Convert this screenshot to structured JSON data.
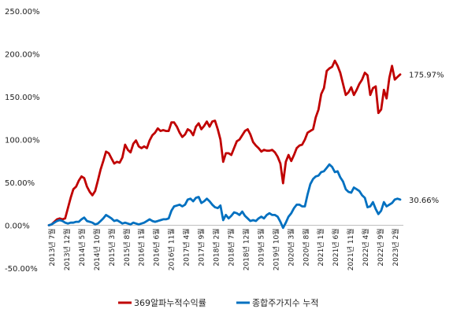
{
  "chart_data": {
    "type": "line",
    "title": "",
    "xlabel": "",
    "ylabel": "",
    "ylim": [
      -50,
      250
    ],
    "yticks": [
      -50,
      0,
      50,
      100,
      150,
      200,
      250
    ],
    "ytick_labels": [
      "-50.00%",
      "0.00%",
      "50.00%",
      "100.00%",
      "150.00%",
      "200.00%",
      "250.00%"
    ],
    "grid": false,
    "legend_position": "bottom",
    "x_tick_labels": [
      "2013년 7월",
      "2013년 12월",
      "2014년 5월",
      "2014년 10월",
      "2015년 3월",
      "2015년 8월",
      "2016년 1월",
      "2016년 6월",
      "2016년 11월",
      "2017년 4월",
      "2017년 9월",
      "2018년 2월",
      "2018년 7월",
      "2018년 12월",
      "2019년 5월",
      "2019년 10월",
      "2020년 3월",
      "2020년 8월",
      "2021년 1월",
      "2021년 6월",
      "2021년 11월",
      "2022년 4월",
      "2022년 9월",
      "2023년 2월"
    ],
    "series": [
      {
        "name": "369알파누적수익률",
        "color": "#c00000",
        "end_label": "175.97%",
        "values": [
          0,
          1,
          4,
          7,
          8,
          7,
          8,
          20,
          32,
          42,
          45,
          52,
          57,
          55,
          45,
          39,
          35,
          40,
          52,
          65,
          75,
          86,
          84,
          78,
          72,
          74,
          73,
          79,
          94,
          88,
          85,
          95,
          99,
          92,
          90,
          92,
          90,
          99,
          105,
          108,
          113,
          110,
          111,
          110,
          110,
          120,
          120,
          115,
          108,
          103,
          106,
          112,
          110,
          105,
          115,
          119,
          112,
          116,
          121,
          115,
          121,
          122,
          112,
          100,
          74,
          84,
          84,
          82,
          90,
          98,
          100,
          105,
          110,
          112,
          106,
          97,
          93,
          90,
          86,
          88,
          87,
          87,
          88,
          85,
          80,
          72,
          49,
          74,
          82,
          75,
          82,
          90,
          93,
          94,
          100,
          108,
          110,
          112,
          126,
          135,
          153,
          160,
          180,
          183,
          185,
          192,
          186,
          178,
          165,
          152,
          155,
          161,
          152,
          158,
          165,
          170,
          178,
          175,
          152,
          160,
          162,
          131,
          135,
          158,
          148,
          172,
          186,
          170,
          173,
          176
        ]
      },
      {
        "name": "종합주가지수 누적",
        "color": "#0070c0",
        "end_label": "30.66%",
        "values": [
          0,
          1,
          3,
          5,
          6,
          5,
          3,
          2,
          3,
          3,
          4,
          4,
          7,
          9,
          5,
          4,
          3,
          1,
          2,
          5,
          8,
          12,
          10,
          8,
          5,
          6,
          4,
          2,
          3,
          2,
          1,
          3,
          2,
          1,
          2,
          3,
          5,
          7,
          5,
          4,
          5,
          6,
          7,
          7,
          8,
          17,
          22,
          23,
          24,
          22,
          24,
          30,
          31,
          28,
          32,
          33,
          26,
          28,
          31,
          28,
          24,
          21,
          20,
          23,
          6,
          12,
          8,
          11,
          15,
          14,
          12,
          16,
          11,
          8,
          5,
          6,
          5,
          8,
          10,
          8,
          12,
          14,
          12,
          12,
          10,
          4,
          -3,
          3,
          10,
          14,
          20,
          24,
          24,
          22,
          22,
          36,
          48,
          54,
          57,
          58,
          62,
          63,
          67,
          71,
          68,
          62,
          63,
          56,
          51,
          42,
          39,
          38,
          44,
          42,
          40,
          35,
          32,
          21,
          22,
          27,
          19,
          13,
          17,
          27,
          22,
          24,
          26,
          30,
          31,
          30
        ]
      }
    ]
  }
}
